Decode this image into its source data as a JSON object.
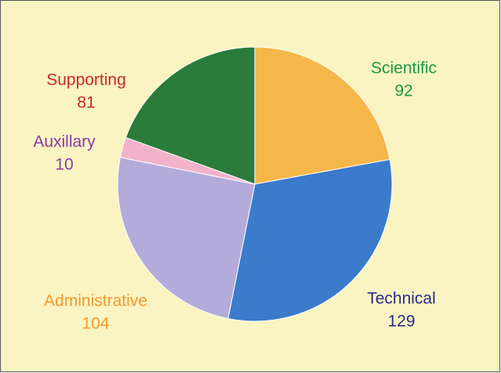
{
  "chart_data": {
    "type": "pie",
    "categories": [
      "Scientific",
      "Technical",
      "Administrative",
      "Auxillary",
      "Supporting"
    ],
    "values": [
      92,
      129,
      104,
      10,
      81
    ],
    "colors": [
      "#f6b74a",
      "#3b7bcb",
      "#b3acda",
      "#f2b3ca",
      "#2b7b3b"
    ],
    "label_colors": [
      "#1a9a45",
      "#2b2b8c",
      "#f29a2e",
      "#8b3ba3",
      "#c8282c"
    ]
  }
}
